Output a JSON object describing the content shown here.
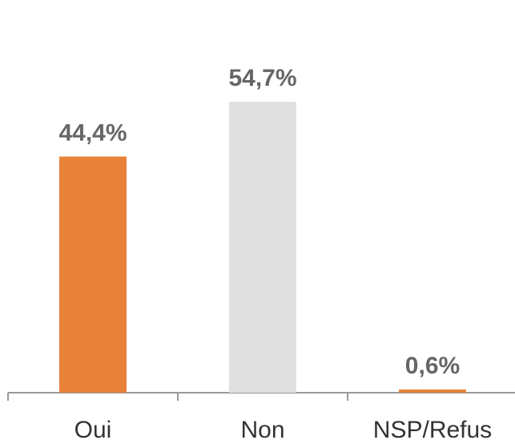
{
  "chart_data": {
    "type": "bar",
    "categories": [
      "Oui",
      "Non",
      "NSP/Refus"
    ],
    "values": [
      44.4,
      54.7,
      0.6
    ],
    "value_labels": [
      "44,4%",
      "54,7%",
      "0,6%"
    ],
    "colors": [
      "#e8823a",
      "#e0e0e0",
      "#e8823a"
    ]
  }
}
